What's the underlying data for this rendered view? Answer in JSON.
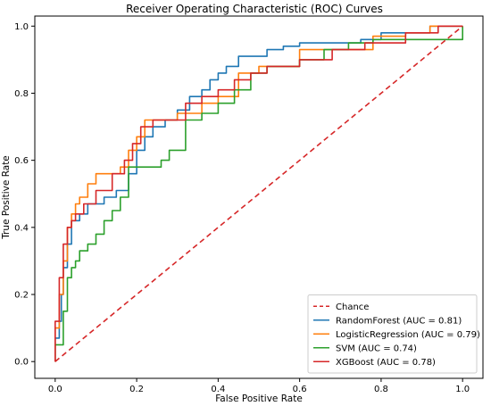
{
  "chart_data": {
    "type": "line",
    "title": "Receiver Operating Characteristic (ROC) Curves",
    "xlabel": "False Positive Rate",
    "ylabel": "True Positive Rate",
    "xlim": [
      -0.05,
      1.05
    ],
    "ylim": [
      -0.05,
      1.03
    ],
    "xticks": [
      0.0,
      0.2,
      0.4,
      0.6,
      0.8,
      1.0
    ],
    "yticks": [
      0.0,
      0.2,
      0.4,
      0.6,
      0.8,
      1.0
    ],
    "xtick_labels": [
      "0.0",
      "0.2",
      "0.4",
      "0.6",
      "0.8",
      "1.0"
    ],
    "ytick_labels": [
      "0.0",
      "0.2",
      "0.4",
      "0.6",
      "0.8",
      "1.0"
    ],
    "grid": false,
    "legend_position": "lower-right",
    "series": [
      {
        "name": "Chance",
        "color": "#d62728",
        "dashed": true,
        "x": [
          0.0,
          1.0
        ],
        "y": [
          0.0,
          1.0
        ]
      },
      {
        "name": "RandomForest (AUC = 0.81)",
        "color": "#1f77b4",
        "x": [
          0.0,
          0.0,
          0.01,
          0.01,
          0.015,
          0.015,
          0.02,
          0.02,
          0.03,
          0.03,
          0.04,
          0.04,
          0.06,
          0.06,
          0.08,
          0.08,
          0.12,
          0.12,
          0.15,
          0.15,
          0.18,
          0.18,
          0.2,
          0.2,
          0.22,
          0.22,
          0.24,
          0.24,
          0.27,
          0.27,
          0.3,
          0.3,
          0.33,
          0.33,
          0.36,
          0.36,
          0.38,
          0.38,
          0.4,
          0.4,
          0.42,
          0.42,
          0.45,
          0.45,
          0.48,
          0.48,
          0.52,
          0.52,
          0.56,
          0.56,
          0.6,
          0.6,
          0.75,
          0.75,
          0.8,
          0.8,
          0.85,
          0.85,
          0.92,
          0.92,
          1.0
        ],
        "y": [
          0.0,
          0.07,
          0.07,
          0.12,
          0.12,
          0.2,
          0.2,
          0.28,
          0.28,
          0.35,
          0.35,
          0.42,
          0.42,
          0.44,
          0.44,
          0.47,
          0.47,
          0.49,
          0.49,
          0.51,
          0.51,
          0.56,
          0.56,
          0.63,
          0.63,
          0.67,
          0.67,
          0.7,
          0.7,
          0.72,
          0.72,
          0.75,
          0.75,
          0.79,
          0.79,
          0.81,
          0.81,
          0.84,
          0.84,
          0.86,
          0.86,
          0.88,
          0.88,
          0.91,
          0.91,
          0.91,
          0.91,
          0.93,
          0.93,
          0.94,
          0.94,
          0.95,
          0.95,
          0.96,
          0.96,
          0.98,
          0.98,
          0.98,
          0.98,
          1.0,
          1.0
        ]
      },
      {
        "name": "LogisticRegression (AUC = 0.79)",
        "color": "#ff7f0e",
        "x": [
          0.0,
          0.0,
          0.01,
          0.01,
          0.02,
          0.02,
          0.03,
          0.03,
          0.04,
          0.04,
          0.05,
          0.05,
          0.06,
          0.06,
          0.08,
          0.08,
          0.1,
          0.1,
          0.16,
          0.16,
          0.18,
          0.18,
          0.2,
          0.2,
          0.22,
          0.22,
          0.25,
          0.25,
          0.3,
          0.3,
          0.32,
          0.32,
          0.36,
          0.36,
          0.4,
          0.4,
          0.45,
          0.45,
          0.5,
          0.5,
          0.6,
          0.6,
          0.78,
          0.78,
          0.86,
          0.86,
          0.92,
          0.92,
          1.0
        ],
        "y": [
          0.0,
          0.1,
          0.1,
          0.2,
          0.2,
          0.3,
          0.3,
          0.4,
          0.4,
          0.44,
          0.44,
          0.47,
          0.47,
          0.49,
          0.49,
          0.53,
          0.53,
          0.56,
          0.56,
          0.58,
          0.58,
          0.63,
          0.63,
          0.67,
          0.67,
          0.72,
          0.72,
          0.72,
          0.72,
          0.74,
          0.74,
          0.74,
          0.74,
          0.77,
          0.77,
          0.79,
          0.79,
          0.86,
          0.86,
          0.88,
          0.88,
          0.93,
          0.93,
          0.97,
          0.97,
          0.98,
          0.98,
          1.0,
          1.0
        ]
      },
      {
        "name": "SVM (AUC = 0.74)",
        "color": "#2ca02c",
        "x": [
          0.0,
          0.0,
          0.02,
          0.02,
          0.03,
          0.03,
          0.04,
          0.04,
          0.05,
          0.05,
          0.06,
          0.06,
          0.08,
          0.08,
          0.1,
          0.1,
          0.12,
          0.12,
          0.14,
          0.14,
          0.16,
          0.16,
          0.18,
          0.18,
          0.22,
          0.22,
          0.26,
          0.26,
          0.28,
          0.28,
          0.32,
          0.32,
          0.36,
          0.36,
          0.4,
          0.4,
          0.44,
          0.44,
          0.48,
          0.48,
          0.52,
          0.52,
          0.6,
          0.6,
          0.66,
          0.66,
          0.72,
          0.72,
          0.78,
          0.78,
          1.0,
          1.0
        ],
        "y": [
          0.0,
          0.05,
          0.05,
          0.15,
          0.15,
          0.25,
          0.25,
          0.28,
          0.28,
          0.3,
          0.3,
          0.33,
          0.33,
          0.35,
          0.35,
          0.38,
          0.38,
          0.42,
          0.42,
          0.45,
          0.45,
          0.49,
          0.49,
          0.58,
          0.58,
          0.58,
          0.58,
          0.6,
          0.6,
          0.63,
          0.63,
          0.72,
          0.72,
          0.74,
          0.74,
          0.77,
          0.77,
          0.81,
          0.81,
          0.86,
          0.86,
          0.88,
          0.88,
          0.9,
          0.9,
          0.93,
          0.93,
          0.95,
          0.95,
          0.96,
          0.96,
          1.0
        ]
      },
      {
        "name": "XGBoost (AUC = 0.78)",
        "color": "#d62728",
        "x": [
          0.0,
          0.0,
          0.01,
          0.01,
          0.02,
          0.02,
          0.03,
          0.03,
          0.04,
          0.04,
          0.05,
          0.05,
          0.07,
          0.07,
          0.1,
          0.1,
          0.14,
          0.14,
          0.17,
          0.17,
          0.19,
          0.19,
          0.21,
          0.21,
          0.24,
          0.24,
          0.27,
          0.27,
          0.32,
          0.32,
          0.36,
          0.36,
          0.4,
          0.4,
          0.44,
          0.44,
          0.48,
          0.48,
          0.52,
          0.52,
          0.6,
          0.6,
          0.68,
          0.68,
          0.76,
          0.76,
          0.86,
          0.86,
          0.94,
          0.94,
          1.0
        ],
        "y": [
          0.0,
          0.12,
          0.12,
          0.25,
          0.25,
          0.35,
          0.35,
          0.4,
          0.4,
          0.42,
          0.42,
          0.44,
          0.44,
          0.47,
          0.47,
          0.51,
          0.51,
          0.56,
          0.56,
          0.6,
          0.6,
          0.65,
          0.65,
          0.7,
          0.7,
          0.72,
          0.72,
          0.72,
          0.72,
          0.77,
          0.77,
          0.79,
          0.79,
          0.81,
          0.81,
          0.84,
          0.84,
          0.86,
          0.86,
          0.88,
          0.88,
          0.9,
          0.9,
          0.93,
          0.93,
          0.95,
          0.95,
          0.98,
          0.98,
          1.0,
          1.0
        ]
      }
    ]
  }
}
